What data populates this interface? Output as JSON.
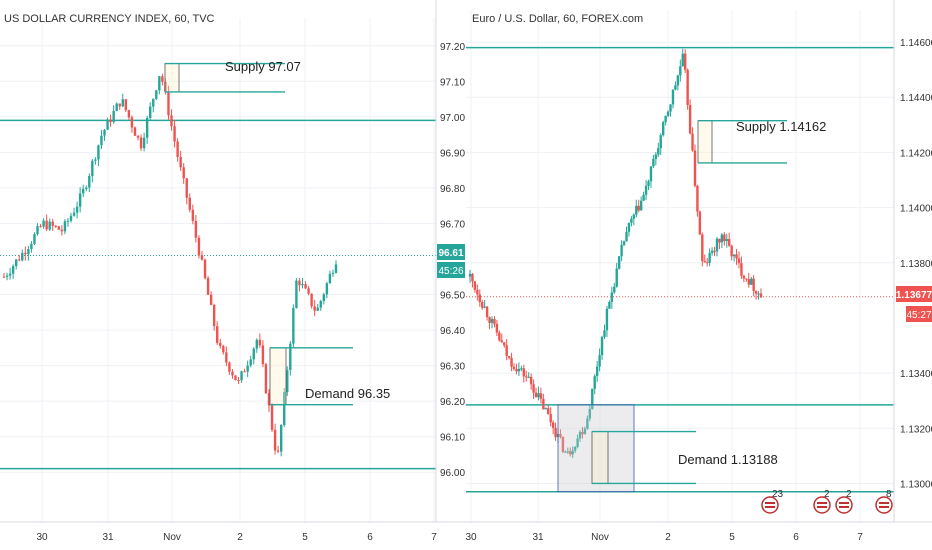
{
  "colors": {
    "up": "#26a69a",
    "down": "#ef5350",
    "level": "#26a69a",
    "grid": "#eef1f5",
    "axis_text": "#333333",
    "price_red": "#ef5350",
    "price_teal": "#26a69a"
  },
  "left_panel": {
    "title": "US DOLLAR CURRENCY INDEX, 60, TVC",
    "annotations": {
      "supply": "Supply 97.07",
      "demand": "Demand 96.35"
    },
    "price_label": "96.61",
    "countdown_label": "45:26"
  },
  "right_panel": {
    "title": "Euro / U.S. Dollar, 60, FOREX.com",
    "annotations": {
      "supply": "Supply 1.14162",
      "demand": "Demand 1.13188"
    },
    "price_label": "1.13677",
    "countdown_label": "45:27",
    "event_markers": [
      "23",
      "2",
      "2",
      "8"
    ]
  },
  "chart_data": [
    {
      "type": "line",
      "title": "US DOLLAR CURRENCY INDEX, 60, TVC",
      "x_ticks": [
        "30",
        "31",
        "Nov",
        "2",
        "5",
        "6",
        "7"
      ],
      "y_ticks": [
        "97.20",
        "97.10",
        "97.00",
        "96.90",
        "96.80",
        "96.70",
        "96.61",
        "96.50",
        "96.40",
        "96.30",
        "96.20",
        "96.10",
        "96.00"
      ],
      "ylim": [
        95.95,
        97.25
      ],
      "horizontal_levels": [
        96.99,
        96.61,
        96.01
      ],
      "supply_zone": [
        97.07,
        97.15
      ],
      "demand_zone": [
        96.19,
        96.35
      ],
      "last_price": 96.61,
      "close_path": [
        {
          "x": "29",
          "y": 96.55
        },
        {
          "x": "29",
          "y": 96.62
        },
        {
          "x": "29",
          "y": 96.7
        },
        {
          "x": "30",
          "y": 96.68
        },
        {
          "x": "30",
          "y": 96.78
        },
        {
          "x": "30",
          "y": 96.95
        },
        {
          "x": "31",
          "y": 97.05
        },
        {
          "x": "31",
          "y": 96.92
        },
        {
          "x": "31",
          "y": 97.13
        },
        {
          "x": "Nov",
          "y": 96.86
        },
        {
          "x": "Nov",
          "y": 96.62
        },
        {
          "x": "Nov",
          "y": 96.35
        },
        {
          "x": "2",
          "y": 96.25
        },
        {
          "x": "2",
          "y": 96.38
        },
        {
          "x": "2",
          "y": 96.03
        },
        {
          "x": "2",
          "y": 96.55
        },
        {
          "x": "5",
          "y": 96.45
        },
        {
          "x": "5",
          "y": 96.6
        }
      ]
    },
    {
      "type": "line",
      "title": "Euro / U.S. Dollar, 60, FOREX.com",
      "x_ticks": [
        "30",
        "31",
        "Nov",
        "2",
        "5",
        "6",
        "7"
      ],
      "y_ticks": [
        "1.14600",
        "1.14400",
        "1.14200",
        "1.14000",
        "1.13800",
        "1.13677",
        "1.13400",
        "1.13200",
        "1.13000"
      ],
      "ylim": [
        1.1294,
        1.1468
      ],
      "horizontal_levels": [
        1.1458,
        1.13677,
        1.13285,
        1.1297
      ],
      "supply_zone": [
        1.14162,
        1.14315
      ],
      "demand_zone": [
        1.13,
        1.13188
      ],
      "last_price": 1.13677,
      "close_path": [
        {
          "x": "29",
          "y": 1.1375
        },
        {
          "x": "30",
          "y": 1.136
        },
        {
          "x": "30",
          "y": 1.1345
        },
        {
          "x": "31",
          "y": 1.1338
        },
        {
          "x": "31",
          "y": 1.1325
        },
        {
          "x": "31",
          "y": 1.131
        },
        {
          "x": "Nov",
          "y": 1.1322
        },
        {
          "x": "Nov",
          "y": 1.136
        },
        {
          "x": "Nov",
          "y": 1.139
        },
        {
          "x": "2",
          "y": 1.1405
        },
        {
          "x": "2",
          "y": 1.143
        },
        {
          "x": "2",
          "y": 1.1455
        },
        {
          "x": "2",
          "y": 1.1378
        },
        {
          "x": "5",
          "y": 1.139
        },
        {
          "x": "5",
          "y": 1.1377
        },
        {
          "x": "5",
          "y": 1.1368
        }
      ]
    }
  ]
}
